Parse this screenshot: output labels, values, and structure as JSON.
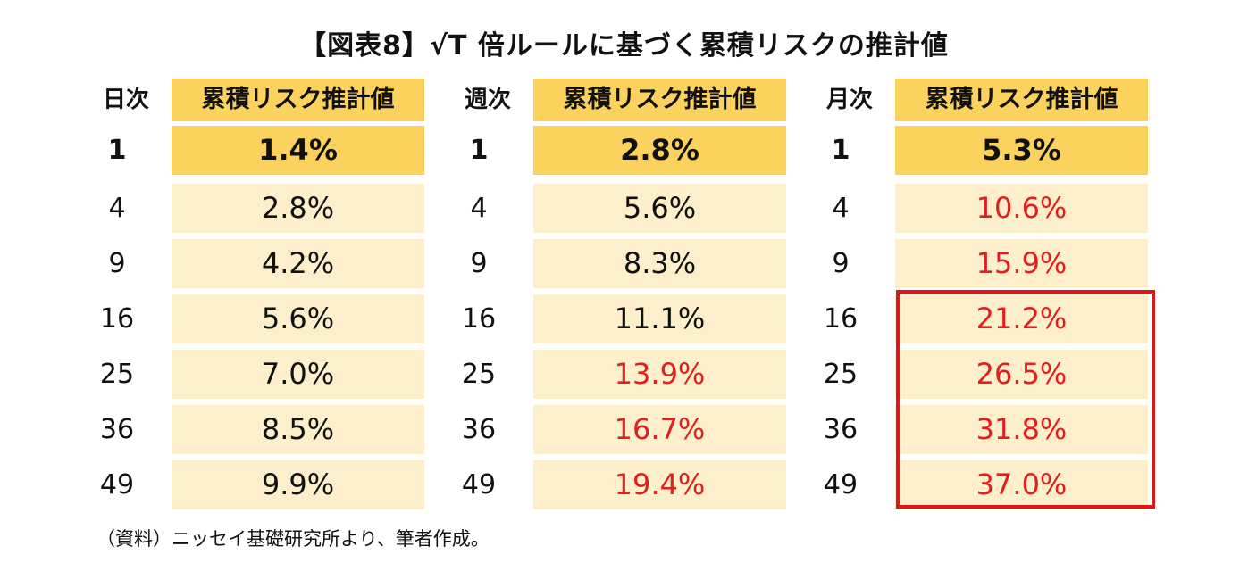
{
  "title": "【図表8】√T 倍ルールに基づく累積リスクの推計値",
  "value_header": "累積リスク推計値",
  "groups": [
    {
      "label": "日次",
      "rows": [
        {
          "n": "1",
          "value": "1.4%"
        },
        {
          "n": "4",
          "value": "2.8%"
        },
        {
          "n": "9",
          "value": "4.2%"
        },
        {
          "n": "16",
          "value": "5.6%"
        },
        {
          "n": "25",
          "value": "7.0%"
        },
        {
          "n": "36",
          "value": "8.5%"
        },
        {
          "n": "49",
          "value": "9.9%"
        }
      ]
    },
    {
      "label": "週次",
      "rows": [
        {
          "n": "1",
          "value": "2.8%"
        },
        {
          "n": "4",
          "value": "5.6%"
        },
        {
          "n": "9",
          "value": "8.3%"
        },
        {
          "n": "16",
          "value": "11.1%"
        },
        {
          "n": "25",
          "value": "13.9%"
        },
        {
          "n": "36",
          "value": "16.7%"
        },
        {
          "n": "49",
          "value": "19.4%"
        }
      ]
    },
    {
      "label": "月次",
      "rows": [
        {
          "n": "1",
          "value": "5.3%"
        },
        {
          "n": "4",
          "value": "10.6%"
        },
        {
          "n": "9",
          "value": "15.9%"
        },
        {
          "n": "16",
          "value": "21.2%"
        },
        {
          "n": "25",
          "value": "26.5%"
        },
        {
          "n": "36",
          "value": "31.8%"
        },
        {
          "n": "49",
          "value": "37.0%"
        }
      ]
    }
  ],
  "source_note": "（資料）ニッセイ基礎研究所より、筆者作成。",
  "colors": {
    "header_fill": "#fcd25e",
    "row_fill": "#fdefcc",
    "highlight_text": "#e02020",
    "highlight_border": "#e01515"
  }
}
